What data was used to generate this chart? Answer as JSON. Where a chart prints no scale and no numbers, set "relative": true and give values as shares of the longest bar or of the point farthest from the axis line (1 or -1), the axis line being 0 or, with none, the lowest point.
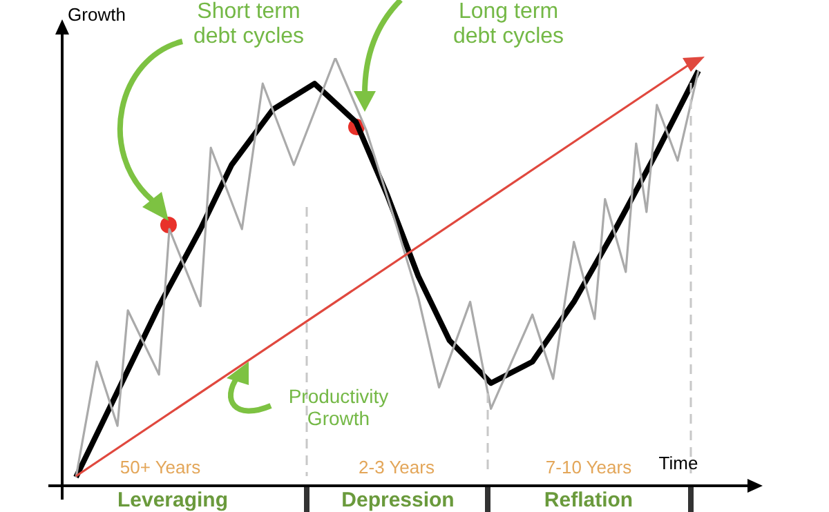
{
  "chart_data": {
    "type": "line",
    "relative": true,
    "xlabel": "Time",
    "ylabel": "Growth",
    "legend": false,
    "marker": "none",
    "categories": [
      null,
      null,
      null,
      null,
      null,
      null,
      null,
      null,
      null,
      null,
      null,
      null,
      null,
      null,
      null,
      null,
      null,
      null,
      null,
      null,
      null,
      null,
      null,
      null,
      null,
      null,
      null,
      null,
      null,
      null,
      null,
      null,
      null,
      null,
      null,
      null,
      null,
      null,
      null,
      null,
      null,
      null,
      null,
      null,
      null,
      null,
      null,
      null,
      null,
      null,
      null,
      null,
      null,
      null,
      null,
      null,
      null,
      null,
      null,
      null,
      null,
      null,
      null,
      null,
      null,
      null
    ],
    "series": [
      {
        "color": "#aaaaaa",
        "values": [
          0.02,
          null,
          0.29,
          null,
          0.14,
          0.41,
          null,
          null,
          0.26,
          0.6,
          null,
          null,
          0.42,
          0.79,
          null,
          null,
          0.6,
          null,
          0.94,
          null,
          null,
          0.75,
          null,
          null,
          null,
          1,
          null,
          null,
          0.83,
          null,
          null,
          0.6,
          null,
          0.44,
          null,
          0.23,
          null,
          null,
          0.43,
          null,
          0.18,
          null,
          null,
          null,
          0.4,
          null,
          0.25,
          null,
          0.57,
          null,
          0.39,
          0.67,
          null,
          0.5,
          0.8,
          0.64,
          0.89,
          null,
          0.76,
          null,
          0.97,
          null,
          null,
          null,
          null,
          null
        ]
      },
      {
        "color": "#000000",
        "values": [
          0.02,
          null,
          null,
          null,
          null,
          null,
          null,
          null,
          0.42,
          null,
          null,
          null,
          0.6,
          null,
          null,
          0.75,
          null,
          null,
          null,
          0.88,
          null,
          null,
          null,
          0.94,
          null,
          null,
          null,
          0.85,
          null,
          null,
          0.68,
          null,
          null,
          0.49,
          null,
          null,
          0.34,
          null,
          null,
          null,
          0.24,
          null,
          null,
          null,
          0.29,
          null,
          null,
          null,
          0.43,
          null,
          null,
          null,
          0.6,
          null,
          null,
          null,
          0.78,
          null,
          null,
          null,
          0.97,
          null,
          null,
          null,
          null,
          null
        ]
      }
    ],
    "annotations": [
      "Short term\ndebt cycles",
      "Long term\ndebt cycles",
      "Productivity\nGrowth",
      "50+ Years",
      "2-3 Years",
      "7-10 Years",
      "Leveraging",
      "Depression",
      "Reflation"
    ]
  }
}
